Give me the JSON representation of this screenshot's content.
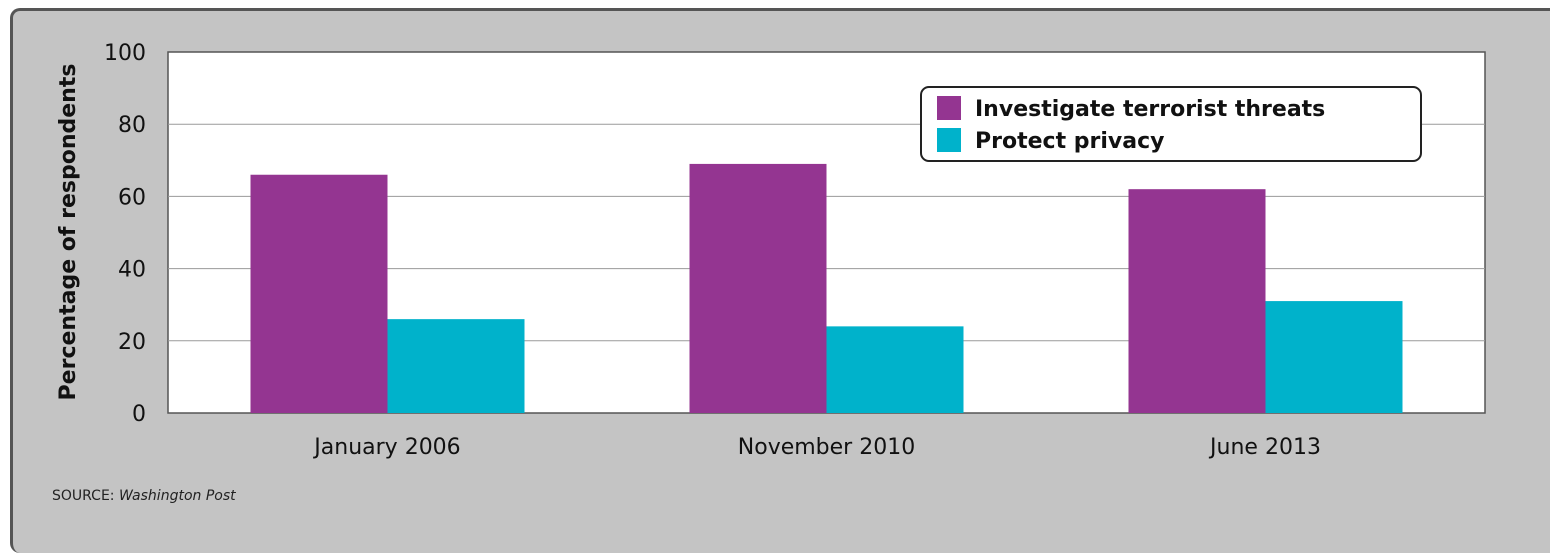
{
  "chart_data": {
    "type": "bar",
    "categories": [
      "January 2006",
      "November 2010",
      "June 2013"
    ],
    "series": [
      {
        "name": "Investigate terrorist threats",
        "color": "#943591",
        "values": [
          66,
          69,
          62
        ]
      },
      {
        "name": "Protect privacy",
        "color": "#00b2cb",
        "values": [
          26,
          24,
          31
        ]
      }
    ],
    "ylabel": "Percentage of respondents",
    "xlabel": "",
    "ylim": [
      0,
      100
    ],
    "yticks": [
      0,
      20,
      40,
      60,
      80,
      100
    ],
    "grid": true,
    "legend_position": "top-right"
  },
  "source": {
    "label": "SOURCE:",
    "name": "Washington Post"
  }
}
